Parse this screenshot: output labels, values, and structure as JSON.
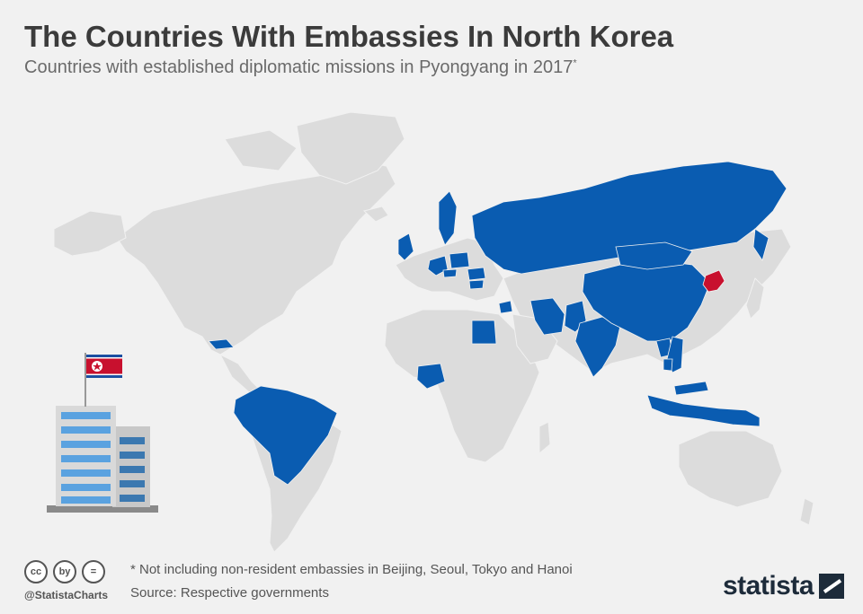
{
  "header": {
    "title": "The Countries With Embassies In North Korea",
    "subtitle": "Countries with established diplomatic missions in Pyongyang in 2017",
    "subtitle_mark": "*"
  },
  "map": {
    "highlight_color": "#0a5cb1",
    "focus_color": "#c8102e",
    "land_color": "#dcdcdc",
    "focus_country": "North Korea",
    "highlighted_countries": [
      "United Kingdom",
      "Sweden",
      "Germany",
      "Poland",
      "Czech Republic",
      "Bulgaria",
      "Romania",
      "Russia",
      "Egypt",
      "Syria",
      "Iran",
      "Pakistan",
      "India",
      "China",
      "Mongolia",
      "Laos",
      "Vietnam",
      "Cambodia",
      "Indonesia",
      "Malaysia",
      "Cuba",
      "Brazil",
      "Nigeria",
      "Palestine"
    ]
  },
  "illustration": {
    "icon": "embassy-building-icon",
    "flag_icon": "north-korea-flag-icon"
  },
  "footer": {
    "note": "* Not including non-resident embassies in Beijing, Seoul, Tokyo and Hanoi",
    "source": "Source: Respective governments",
    "handle": "@StatistaCharts",
    "license_icons": [
      "cc",
      "by",
      "="
    ],
    "brand": "statista"
  }
}
